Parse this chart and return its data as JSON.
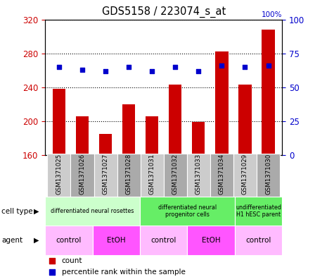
{
  "title": "GDS5158 / 223074_s_at",
  "samples": [
    "GSM1371025",
    "GSM1371026",
    "GSM1371027",
    "GSM1371028",
    "GSM1371031",
    "GSM1371032",
    "GSM1371033",
    "GSM1371034",
    "GSM1371029",
    "GSM1371030"
  ],
  "counts": [
    238,
    206,
    185,
    220,
    206,
    243,
    199,
    282,
    243,
    308
  ],
  "percentiles": [
    65,
    63,
    62,
    65,
    62,
    65,
    62,
    66,
    65,
    66
  ],
  "ylim_left": [
    160,
    320
  ],
  "ylim_right": [
    0,
    100
  ],
  "yticks_left": [
    160,
    200,
    240,
    280,
    320
  ],
  "yticks_right": [
    0,
    25,
    50,
    75,
    100
  ],
  "cell_type_groups": [
    {
      "label": "differentiated neural rosettes",
      "start": 0,
      "end": 3,
      "color": "#ccffcc"
    },
    {
      "label": "differentiated neural\nprogenitor cells",
      "start": 4,
      "end": 7,
      "color": "#66ee66"
    },
    {
      "label": "undifferentiated\nH1 hESC parent",
      "start": 8,
      "end": 9,
      "color": "#66ee66"
    }
  ],
  "agent_groups": [
    {
      "label": "control",
      "start": 0,
      "end": 1,
      "color": "#ffbbff"
    },
    {
      "label": "EtOH",
      "start": 2,
      "end": 3,
      "color": "#ff55ff"
    },
    {
      "label": "control",
      "start": 4,
      "end": 5,
      "color": "#ffbbff"
    },
    {
      "label": "EtOH",
      "start": 6,
      "end": 7,
      "color": "#ff55ff"
    },
    {
      "label": "control",
      "start": 8,
      "end": 9,
      "color": "#ffbbff"
    }
  ],
  "bar_color": "#cc0000",
  "dot_color": "#0000cc",
  "bar_width": 0.55,
  "ylabel_left_color": "#cc0000",
  "ylabel_right_color": "#0000cc",
  "sample_box_colors": [
    "#cccccc",
    "#aaaaaa",
    "#cccccc",
    "#aaaaaa",
    "#cccccc",
    "#aaaaaa",
    "#cccccc",
    "#aaaaaa",
    "#cccccc",
    "#aaaaaa"
  ]
}
